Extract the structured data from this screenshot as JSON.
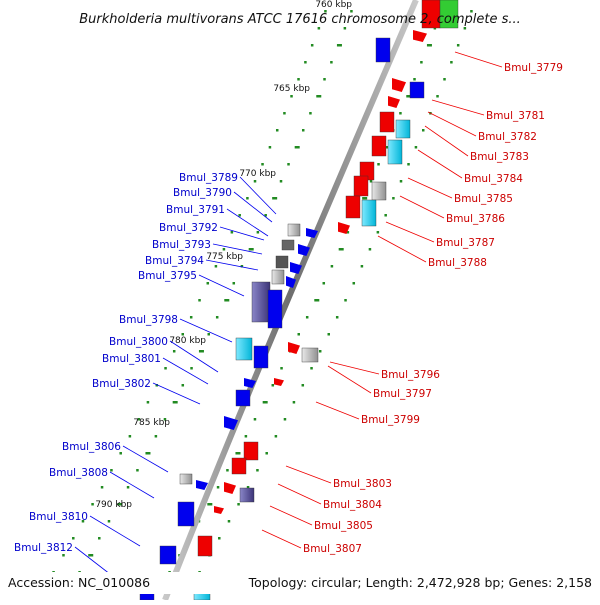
{
  "title": "Burkholderia multivorans ATCC 17616 chromosome 2, complete s...",
  "footer": {
    "accession": "Accession: NC_010086",
    "topology": "Topology: circular; Length: 2,472,928 bp; Genes: 2,158"
  },
  "ticks": [
    "760 kbp",
    "765 kbp",
    "770 kbp",
    "775 kbp",
    "780 kbp",
    "785 kbp",
    "790 kbp"
  ],
  "genes_forward": [
    "Bmul_3779",
    "Bmul_3781",
    "Bmul_3782",
    "Bmul_3783",
    "Bmul_3784",
    "Bmul_3785",
    "Bmul_3786",
    "Bmul_3787",
    "Bmul_3788",
    "Bmul_3796",
    "Bmul_3797",
    "Bmul_3799",
    "Bmul_3803",
    "Bmul_3804",
    "Bmul_3805",
    "Bmul_3807"
  ],
  "genes_reverse": [
    "Bmul_3789",
    "Bmul_3790",
    "Bmul_3791",
    "Bmul_3792",
    "Bmul_3793",
    "Bmul_3794",
    "Bmul_3795",
    "Bmul_3798",
    "Bmul_3800",
    "Bmul_3801",
    "Bmul_3802",
    "Bmul_3806",
    "Bmul_3808",
    "Bmul_3810",
    "Bmul_3812"
  ],
  "colors": {
    "forward": "#ee0000",
    "reverse": "#0000ee",
    "backbone": "#808080",
    "gc_dots": "#228b22"
  }
}
